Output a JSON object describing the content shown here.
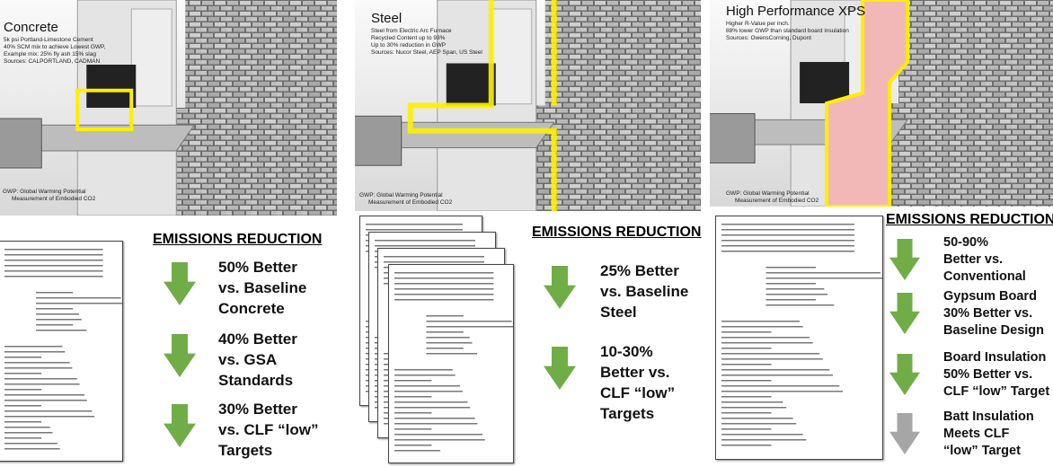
{
  "panels": [
    {
      "title": "Concrete",
      "notes": [
        "5k psi Portland-Limestone Cement",
        "40% SCM mix to achieve Lowest GWP,",
        "Example mix: 25% fly ash 15% slag",
        "Sources: CALPORTLAND, CADMAN"
      ],
      "footnote": [
        "GWP: Global Warming Potential",
        "Measurement of Embodied CO2"
      ],
      "heading": "EMISSIONS REDUCTION",
      "items": [
        {
          "lines": [
            "50% Better",
            "vs. Baseline",
            "Concrete"
          ]
        },
        {
          "lines": [
            "40% Better",
            "vs. GSA",
            "Standards"
          ]
        },
        {
          "lines": [
            "30% Better",
            "vs. CLF “low”",
            "Targets"
          ]
        }
      ]
    },
    {
      "title": "Steel",
      "notes": [
        "Steel from Electric Arc Furnace",
        "Recycled Content up to 93%",
        "Up to 30% reduction in GWP",
        "Sources: Nucor Steel, AEP Span, US Steel"
      ],
      "footnote": [
        "GWP: Global Warming Potential",
        "Measurement of Embodied CO2"
      ],
      "heading": "EMISSIONS REDUCTION",
      "items": [
        {
          "lines": [
            "25% Better",
            "vs. Baseline",
            "Steel"
          ]
        },
        {
          "lines": [
            "10-30%",
            "Better vs.",
            "CLF “low”",
            "Targets"
          ]
        }
      ]
    },
    {
      "title": "High Performance XPS",
      "notes": [
        "Higher R-Value per inch.",
        "88% lower GWP than standard board insulation",
        "Sources: OwensCorning, Dupont"
      ],
      "footnote": [
        "GWP: Global Warming Potential",
        "Measurement of Embodied CO2"
      ],
      "heading": "EMISSIONS REDUCTION",
      "items": [
        {
          "lines": [
            "50-90%",
            "Better vs.",
            "Conventional"
          ]
        },
        {
          "lines": [
            "Gypsum Board",
            "30% Better vs.",
            "Baseline Design"
          ]
        },
        {
          "lines": [
            "Board Insulation",
            "50% Better vs.",
            "CLF “low” Target"
          ]
        },
        {
          "lines": [
            "Batt Insulation",
            "Meets CLF",
            "“low” Target"
          ]
        }
      ]
    }
  ]
}
